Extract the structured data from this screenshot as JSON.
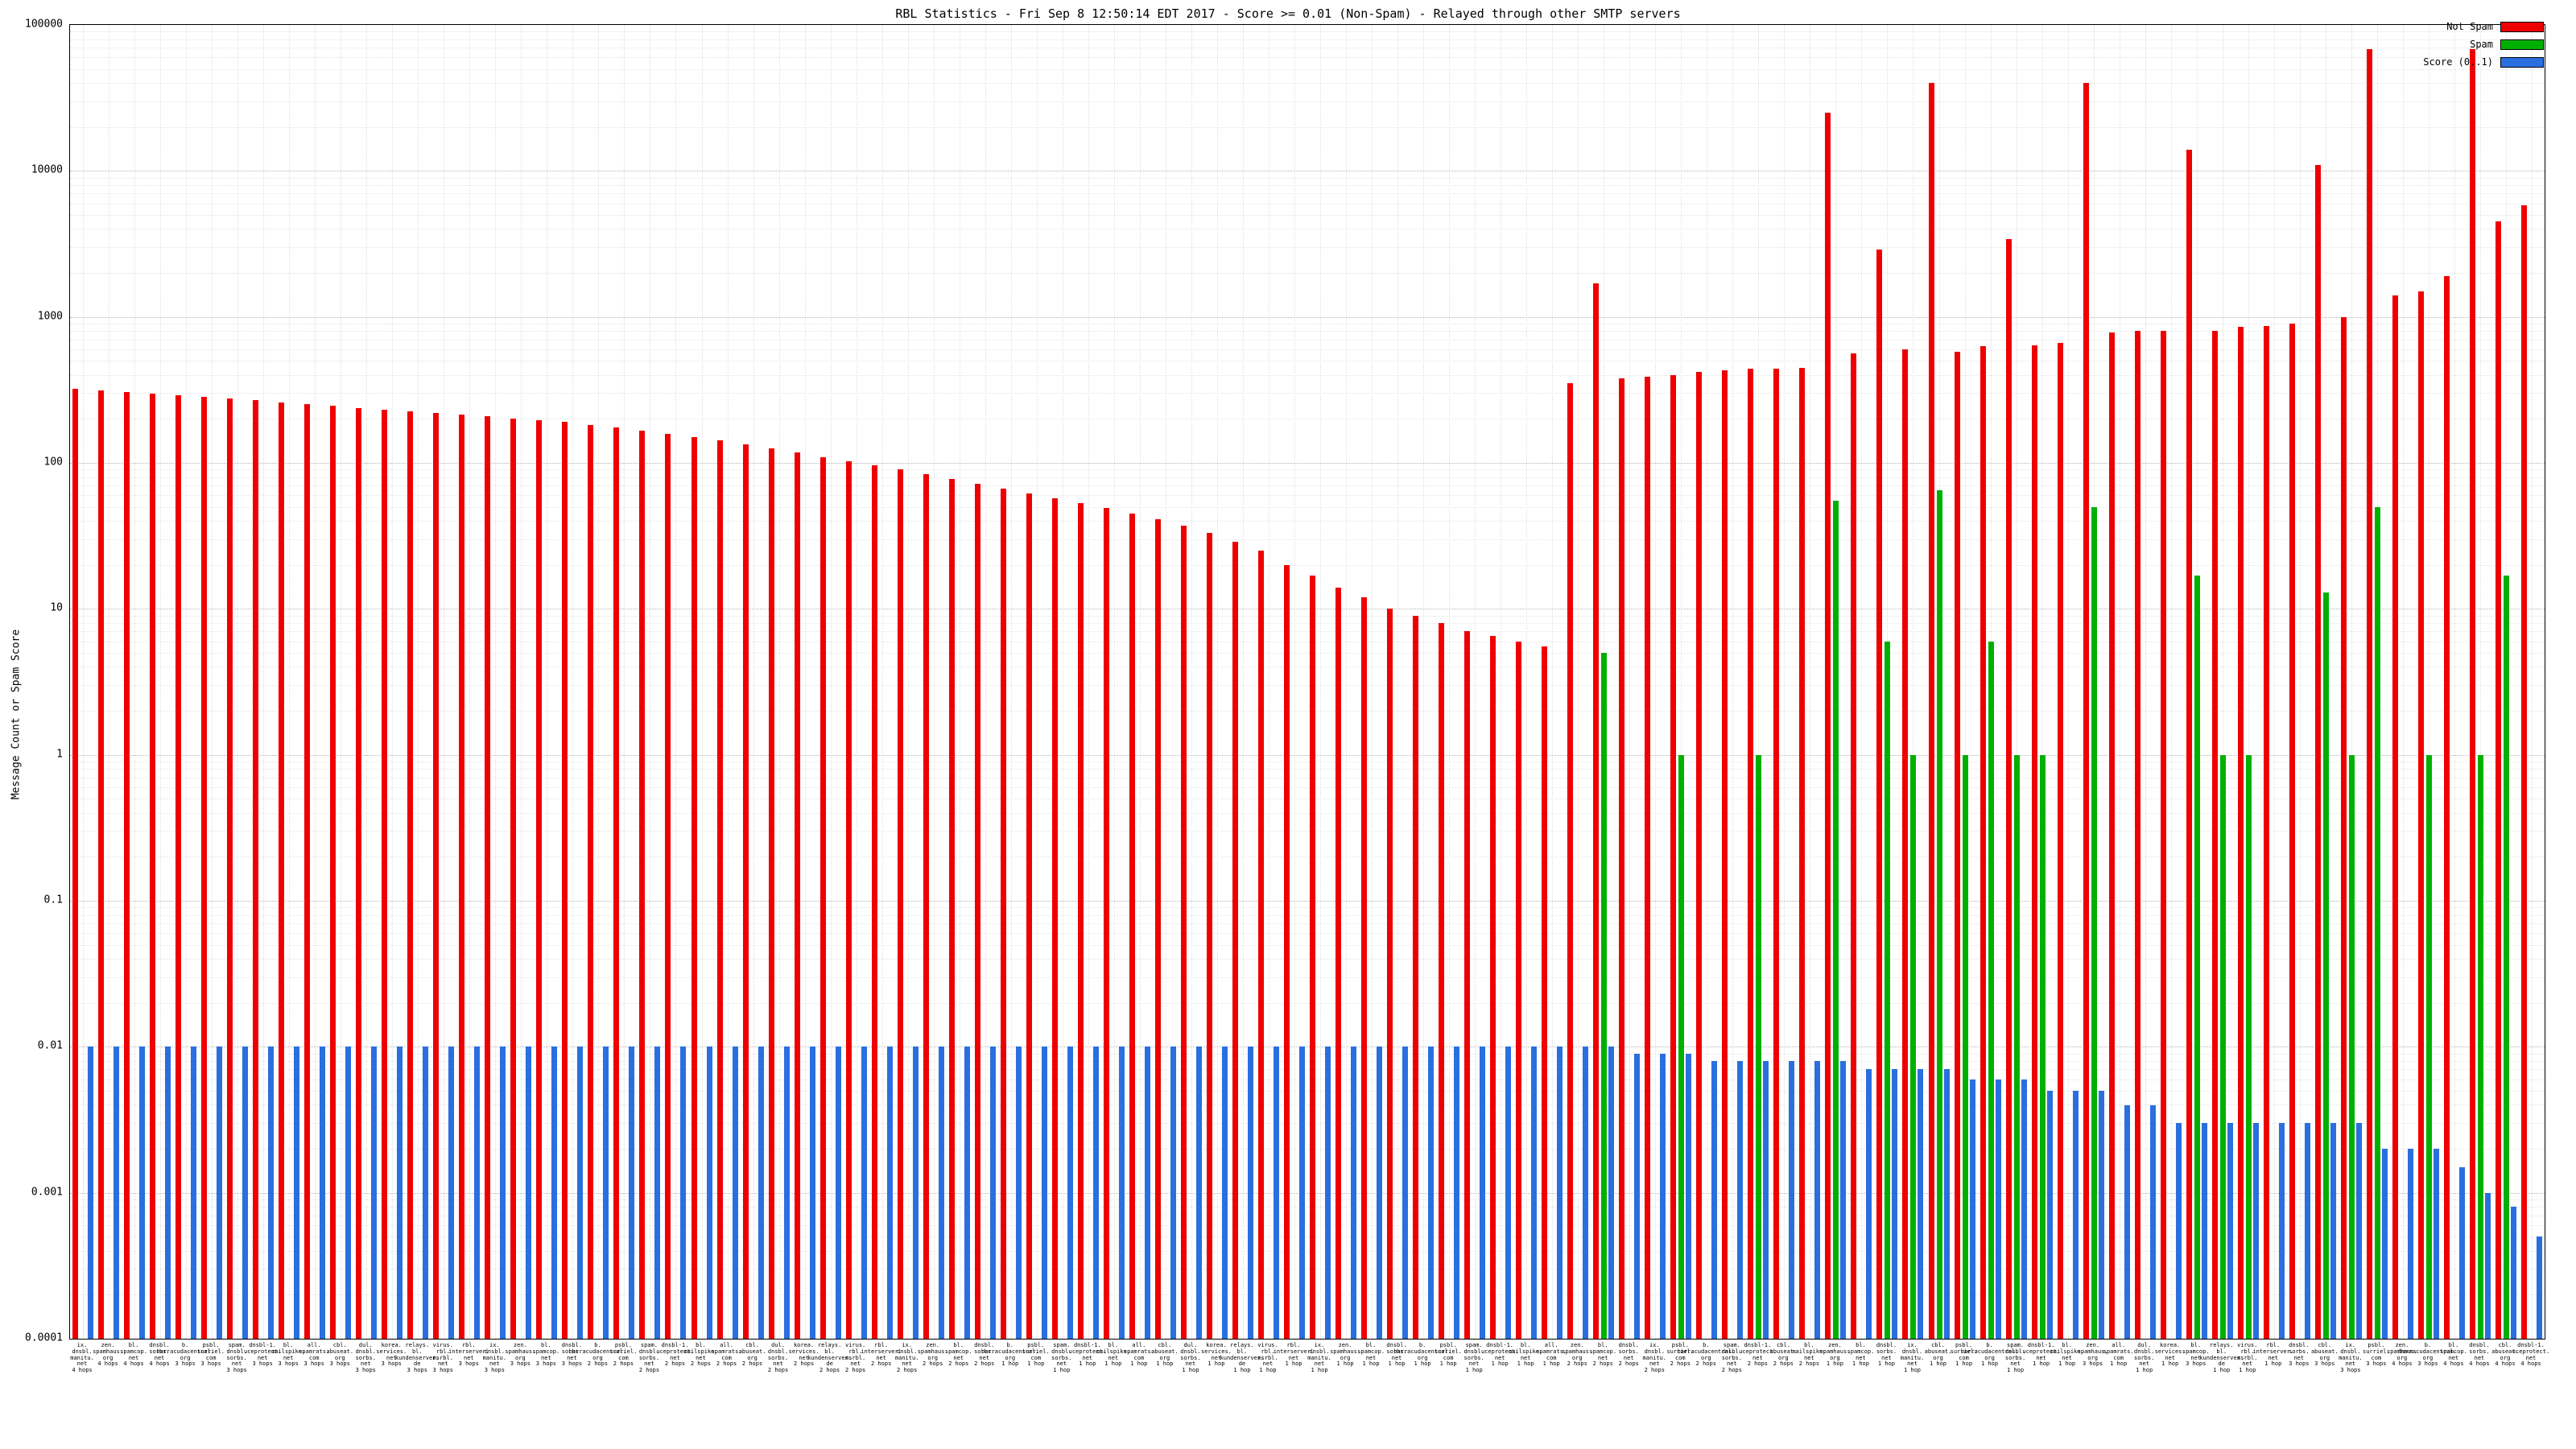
{
  "ylabel": "Message Count or Spam Score",
  "chart_data": {
    "type": "bar",
    "title": "RBL Statistics - Fri Sep 8 12:50:14 EDT 2017 - Score >= 0.01 (Non-Spam) - Relayed through other SMTP servers",
    "y_scale": "log",
    "ylim": [
      0.0001,
      100000
    ],
    "y_ticks": [
      "100000",
      "10000",
      "1000",
      "100",
      "10",
      "1",
      "0.1",
      "0.01",
      "0.001",
      "0.0001"
    ],
    "grid": true,
    "legend_position": "top-right",
    "ylabel": "Message Count or Spam Score",
    "categories": [
      "ix.dnsbl.manitu.net 4 hops",
      "zen.spamhaus.org 4 hops",
      "bl.spamcop.net 4 hops",
      "dnsbl.sorbs.net 4 hops",
      "b.barracudacentral.org 3 hops",
      "psbl.surriel.com 3 hops",
      "spam.dnsbl.sorbs.net 3 hops",
      "dnsbl-1.uceprotect.net 3 hops",
      "bl.mailspike.net 3 hops",
      "all.spamrats.com 3 hops",
      "cbl.abuseat.org 3 hops",
      "dul.dnsbl.sorbs.net 3 hops",
      "korea.services.net 3 hops",
      "relays.bl.kundenserver.de 3 hops",
      "virus.rbl.msrbl.net 3 hops",
      "rbl.interserver.net 3 hops",
      "ix.dnsbl.manitu.net 3 hops",
      "zen.spamhaus.org 3 hops",
      "bl.spamcop.net 3 hops",
      "dnsbl.sorbs.net 3 hops",
      "b.barracudacentral.org 2 hops",
      "psbl.surriel.com 2 hops",
      "spam.dnsbl.sorbs.net 2 hops",
      "dnsbl-1.uceprotect.net 2 hops",
      "bl.mailspike.net 2 hops",
      "all.spamrats.com 2 hops",
      "cbl.abuseat.org 2 hops",
      "dul.dnsbl.sorbs.net 2 hops",
      "korea.services.net 2 hops",
      "relays.bl.kundenserver.de 2 hops",
      "virus.rbl.msrbl.net 2 hops",
      "rbl.interserver.net 2 hops",
      "ix.dnsbl.manitu.net 2 hops",
      "zen.spamhaus.org 2 hops",
      "bl.spamcop.net 2 hops",
      "dnsbl.sorbs.net 2 hops",
      "b.barracudacentral.org 1 hop",
      "psbl.surriel.com 1 hop",
      "spam.dnsbl.sorbs.net 1 hop",
      "dnsbl-1.uceprotect.net 1 hop",
      "bl.mailspike.net 1 hop",
      "all.spamrats.com 1 hop",
      "cbl.abuseat.org 1 hop",
      "dul.dnsbl.sorbs.net 1 hop",
      "korea.services.net 1 hop",
      "relays.bl.kundenserver.de 1 hop",
      "virus.rbl.msrbl.net 1 hop",
      "rbl.interserver.net 1 hop",
      "ix.dnsbl.manitu.net 1 hop",
      "zen.spamhaus.org 1 hop",
      "bl.spamcop.net 1 hop",
      "dnsbl.sorbs.net 1 hop",
      "b.barracudacentral.org 1 hop",
      "psbl.surriel.com 1 hop",
      "spam.dnsbl.sorbs.net 1 hop",
      "dnsbl-1.uceprotect.net 1 hop",
      "bl.mailspike.net 1 hop",
      "all.spamrats.com 1 hop",
      "zen.spamhaus.org 2 hops",
      "bl.spamcop.net 2 hops",
      "dnsbl.sorbs.net 2 hops",
      "ix.dnsbl.manitu.net 2 hops",
      "psbl.surriel.com 2 hops",
      "b.barracudacentral.org 2 hops",
      "spam.dnsbl.sorbs.net 2 hops",
      "dnsbl-1.uceprotect.net 2 hops",
      "cbl.abuseat.org 2 hops",
      "bl.mailspike.net 2 hops",
      "zen.spamhaus.org 1 hop",
      "bl.spamcop.net 1 hop",
      "dnsbl.sorbs.net 1 hop",
      "ix.dnsbl.manitu.net 1 hop",
      "cbl.abuseat.org 1 hop",
      "psbl.surriel.com 1 hop",
      "b.barracudacentral.org 1 hop",
      "spam.dnsbl.sorbs.net 1 hop",
      "dnsbl-1.uceprotect.net 1 hop",
      "bl.mailspike.net 1 hop",
      "zen.spamhaus.org 3 hops",
      "all.spamrats.com 1 hop",
      "dul.dnsbl.sorbs.net 1 hop",
      "korea.services.net 1 hop",
      "bl.spamcop.net 3 hops",
      "relays.bl.kundenserver.de 1 hop",
      "virus.rbl.msrbl.net 1 hop",
      "rbl.interserver.net 1 hop",
      "dnsbl.sorbs.net 3 hops",
      "cbl.abuseat.org 3 hops",
      "ix.dnsbl.manitu.net 3 hops",
      "psbl.surriel.com 3 hops",
      "zen.spamhaus.org 4 hops",
      "b.barracudacentral.org 3 hops",
      "bl.spamcop.net 4 hops",
      "dnsbl.sorbs.net 4 hops",
      "cbl.abuseat.org 4 hops",
      "dnsbl-1.uceprotect.net 4 hops"
    ],
    "series": [
      {
        "name": "Not Spam",
        "color": "#ee0000",
        "values": [
          320,
          312,
          305,
          298,
          290,
          282,
          275,
          268,
          260,
          252,
          245,
          238,
          232,
          226,
          220,
          214,
          208,
          202,
          196,
          190,
          182,
          174,
          166,
          158,
          150,
          142,
          134,
          126,
          118,
          110,
          103,
          96,
          90,
          84,
          78,
          72,
          67,
          62,
          57,
          53,
          49,
          45,
          41,
          37,
          33,
          29,
          25,
          20,
          17,
          14,
          12,
          10,
          9,
          8,
          7,
          6.5,
          6,
          5.5,
          350,
          1700,
          380,
          390,
          400,
          420,
          430,
          440,
          440,
          450,
          25000,
          560,
          2900,
          600,
          40000,
          580,
          630,
          3400,
          640,
          660,
          40000,
          780,
          800,
          800,
          14000,
          800,
          850,
          870,
          900,
          11000,
          1000,
          68000,
          1400,
          1500,
          1900,
          68000,
          4500,
          5800
        ]
      },
      {
        "name": "Spam",
        "color": "#00b000",
        "values": [
          0,
          0,
          0,
          0,
          0,
          0,
          0,
          0,
          0,
          0,
          0,
          0,
          0,
          0,
          0,
          0,
          0,
          0,
          0,
          0,
          0,
          0,
          0,
          0,
          0,
          0,
          0,
          0,
          0,
          0,
          0,
          0,
          0,
          0,
          0,
          0,
          0,
          0,
          0,
          0,
          0,
          0,
          0,
          0,
          0,
          0,
          0,
          0,
          0,
          0,
          0,
          0,
          0,
          0,
          0,
          0,
          0,
          0,
          0,
          5,
          0,
          0,
          1,
          0,
          0,
          1,
          0,
          0,
          55,
          0,
          6,
          1,
          65,
          1,
          6,
          1,
          1,
          0,
          50,
          0,
          0,
          0,
          17,
          1,
          1,
          0,
          0,
          13,
          1,
          50,
          0,
          1,
          0,
          1,
          17,
          0
        ]
      },
      {
        "name": "Score (0..1)",
        "color": "#2a6fdf",
        "values": [
          0.01,
          0.01,
          0.01,
          0.01,
          0.01,
          0.01,
          0.01,
          0.01,
          0.01,
          0.01,
          0.01,
          0.01,
          0.01,
          0.01,
          0.01,
          0.01,
          0.01,
          0.01,
          0.01,
          0.01,
          0.01,
          0.01,
          0.01,
          0.01,
          0.01,
          0.01,
          0.01,
          0.01,
          0.01,
          0.01,
          0.01,
          0.01,
          0.01,
          0.01,
          0.01,
          0.01,
          0.01,
          0.01,
          0.01,
          0.01,
          0.01,
          0.01,
          0.01,
          0.01,
          0.01,
          0.01,
          0.01,
          0.01,
          0.01,
          0.01,
          0.01,
          0.01,
          0.01,
          0.01,
          0.01,
          0.01,
          0.01,
          0.01,
          0.01,
          0.01,
          0.009,
          0.009,
          0.009,
          0.008,
          0.008,
          0.008,
          0.008,
          0.008,
          0.008,
          0.007,
          0.007,
          0.007,
          0.007,
          0.006,
          0.006,
          0.006,
          0.005,
          0.005,
          0.005,
          0.004,
          0.004,
          0.003,
          0.003,
          0.003,
          0.003,
          0.003,
          0.003,
          0.003,
          0.003,
          0.002,
          0.002,
          0.002,
          0.0015,
          0.001,
          0.0008,
          0.0005
        ]
      }
    ]
  },
  "legend": {
    "items": [
      {
        "label": "Not Spam",
        "color": "#ee0000"
      },
      {
        "label": "Spam",
        "color": "#00b000"
      },
      {
        "label": "Score (0..1)",
        "color": "#2a6fdf"
      }
    ]
  }
}
